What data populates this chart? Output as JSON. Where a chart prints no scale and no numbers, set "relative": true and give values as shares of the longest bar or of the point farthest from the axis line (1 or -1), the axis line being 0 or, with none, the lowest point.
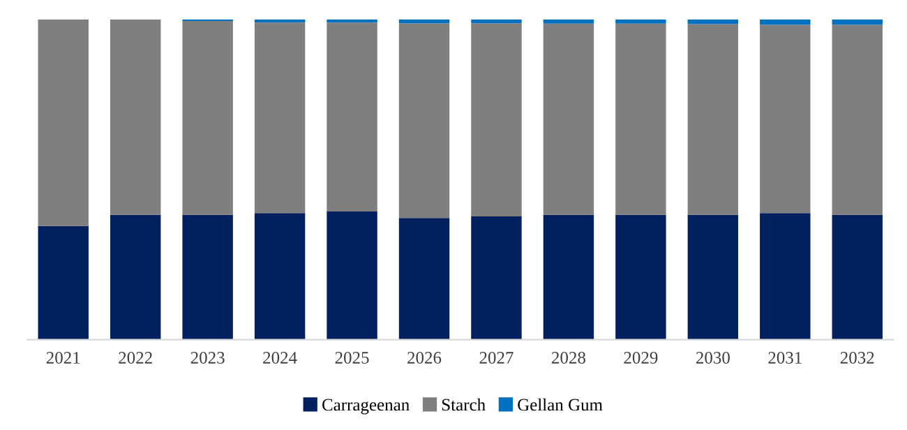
{
  "chart_data": {
    "type": "bar",
    "stacked": true,
    "relative": true,
    "legend": "bottom",
    "grid": false,
    "categories": [
      "2021",
      "2022",
      "2023",
      "2024",
      "2025",
      "2026",
      "2027",
      "2028",
      "2029",
      "2030",
      "2031",
      "2032"
    ],
    "series": [
      {
        "name": "Carrageenan",
        "color": "#002060",
        "values": [
          0.355,
          0.39,
          0.39,
          0.395,
          0.4,
          0.38,
          0.385,
          0.39,
          0.39,
          0.39,
          0.395,
          0.39
        ]
      },
      {
        "name": "Starch",
        "color": "#7f7f7f",
        "values": [
          0.645,
          0.61,
          0.605,
          0.595,
          0.59,
          0.608,
          0.603,
          0.597,
          0.597,
          0.595,
          0.588,
          0.593
        ]
      },
      {
        "name": "Gellan Gum",
        "color": "#0070c0",
        "values": [
          0,
          0,
          0.005,
          0.01,
          0.01,
          0.012,
          0.012,
          0.013,
          0.013,
          0.015,
          0.017,
          0.017
        ]
      }
    ]
  }
}
